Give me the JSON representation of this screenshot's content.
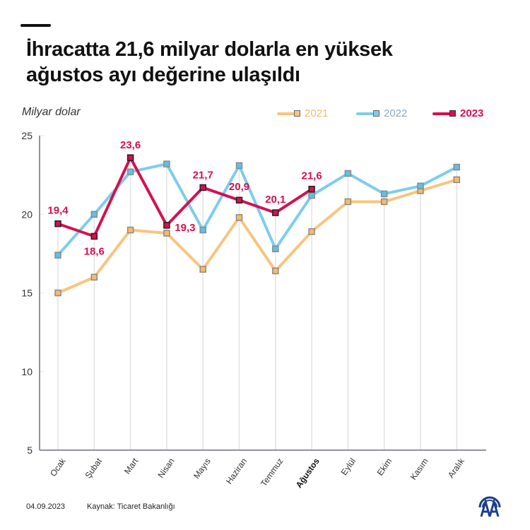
{
  "header": {
    "title_line1": "İhracatta 21,6 milyar dolarla en yüksek",
    "title_line2": "ağustos ayı değerine ulaşıldı"
  },
  "footer": {
    "date": "04.09.2023",
    "source": "Kaynak: Ticaret Bakanlığı",
    "logo": "aa-logo-icon"
  },
  "colors": {
    "s2021": "#F9C47E",
    "s2022": "#7DCDEB",
    "s2023": "#D6104F",
    "axis": "#6B7080",
    "grid": "#E2E2E2"
  },
  "chart_data": {
    "type": "line",
    "title": "İhracatta 21,6 milyar dolarla en yüksek ağustos ayı değerine ulaşıldı",
    "ylabel": "Milyar dolar",
    "xlabel": "",
    "ylim": [
      5,
      25
    ],
    "yticks": [
      5,
      10,
      15,
      20,
      25
    ],
    "ytick_labels": [
      "5",
      "10",
      "15",
      "20",
      "25"
    ],
    "legend_position": "top-right",
    "highlight_category": "Ağustos",
    "categories": [
      "Ocak",
      "Şubat",
      "Mart",
      "Nisan",
      "Mayıs",
      "Haziran",
      "Temmuz",
      "Ağustos",
      "Eylül",
      "Ekim",
      "Kasım",
      "Aralık"
    ],
    "series": [
      {
        "name": "2021",
        "color": "#F9C47E",
        "values": [
          15.0,
          16.0,
          19.0,
          18.8,
          16.5,
          19.8,
          16.4,
          18.9,
          20.8,
          20.8,
          21.5,
          22.2
        ]
      },
      {
        "name": "2022",
        "color": "#7DCDEB",
        "values": [
          17.4,
          20.0,
          22.7,
          23.2,
          19.0,
          23.1,
          17.8,
          21.2,
          22.6,
          21.3,
          21.8,
          23.0
        ]
      },
      {
        "name": "2023",
        "color": "#D6104F",
        "values": [
          19.4,
          18.6,
          23.6,
          19.3,
          21.7,
          20.9,
          20.1,
          21.6
        ],
        "data_labels": [
          "19,4",
          "18,6",
          "23,6",
          "19,3",
          "21,7",
          "20,9",
          "20,1",
          "21,6"
        ]
      }
    ]
  }
}
